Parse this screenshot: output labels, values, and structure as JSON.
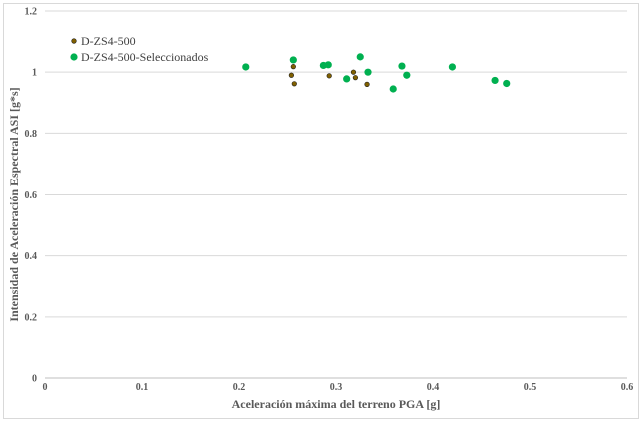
{
  "chart_data": {
    "type": "scatter",
    "xlabel": "Aceleración máxima del terreno PGA [g]",
    "ylabel": "Intensidad de Aceleración Espectral ASI [g*s]",
    "xlim": [
      0,
      0.6
    ],
    "ylim": [
      0,
      1.2
    ],
    "x_ticks": [
      "0",
      "0.1",
      "0.2",
      "0.3",
      "0.4",
      "0.5",
      "0.6"
    ],
    "y_ticks": [
      "0",
      "0.2",
      "0.4",
      "0.6",
      "0.8",
      "1",
      "1.2"
    ],
    "grid": "horizontal",
    "legend_position": "top-left",
    "series": [
      {
        "name": "D-ZS4-500",
        "color": "#806000",
        "marker": "circle-small",
        "points": [
          [
            0.256,
            1.018
          ],
          [
            0.254,
            0.99
          ],
          [
            0.257,
            0.962
          ],
          [
            0.293,
            0.988
          ],
          [
            0.318,
            1.0
          ],
          [
            0.32,
            0.982
          ],
          [
            0.332,
            0.96
          ]
        ]
      },
      {
        "name": "D-ZS4-500-Seleccionados",
        "color": "#00b050",
        "marker": "circle",
        "points": [
          [
            0.207,
            1.017
          ],
          [
            0.256,
            1.04
          ],
          [
            0.287,
            1.022
          ],
          [
            0.292,
            1.024
          ],
          [
            0.311,
            0.978
          ],
          [
            0.325,
            1.05
          ],
          [
            0.333,
            1.0
          ],
          [
            0.359,
            0.945
          ],
          [
            0.368,
            1.02
          ],
          [
            0.373,
            0.99
          ],
          [
            0.42,
            1.017
          ],
          [
            0.464,
            0.973
          ],
          [
            0.476,
            0.963
          ]
        ]
      }
    ]
  }
}
